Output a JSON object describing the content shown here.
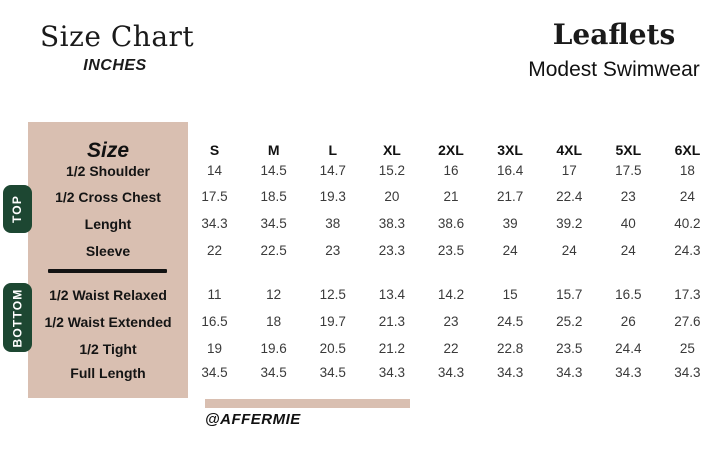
{
  "header": {
    "left_title": "Size Chart",
    "left_subtitle": "INCHES",
    "brand_title": "Leaflets",
    "brand_subtitle": "Modest Swimwear"
  },
  "table": {
    "corner_label": "Size",
    "size_columns": [
      "S",
      "M",
      "L",
      "XL",
      "2XL",
      "3XL",
      "4XL",
      "5XL",
      "6XL"
    ],
    "sections": [
      {
        "name": "TOP",
        "rows": [
          {
            "label": "1/2 Shoulder",
            "values": [
              "14",
              "14.5",
              "14.7",
              "15.2",
              "16",
              "16.4",
              "17",
              "17.5",
              "18"
            ]
          },
          {
            "label": "1/2 Cross Chest",
            "values": [
              "17.5",
              "18.5",
              "19.3",
              "20",
              "21",
              "21.7",
              "22.4",
              "23",
              "24"
            ]
          },
          {
            "label": "Lenght",
            "values": [
              "34.3",
              "34.5",
              "38",
              "38.3",
              "38.6",
              "39",
              "39.2",
              "40",
              "40.2"
            ]
          },
          {
            "label": "Sleeve",
            "values": [
              "22",
              "22.5",
              "23",
              "23.3",
              "23.5",
              "24",
              "24",
              "24",
              "24.3"
            ]
          }
        ]
      },
      {
        "name": "BOTTOM",
        "rows": [
          {
            "label": "1/2 Waist Relaxed",
            "values": [
              "11",
              "12",
              "12.5",
              "13.4",
              "14.2",
              "15",
              "15.7",
              "16.5",
              "17.3"
            ]
          },
          {
            "label": "1/2 Waist Extended",
            "values": [
              "16.5",
              "18",
              "19.7",
              "21.3",
              "23",
              "24.5",
              "25.2",
              "26",
              "27.6"
            ]
          },
          {
            "label": "1/2 Tight",
            "values": [
              "19",
              "19.6",
              "20.5",
              "21.2",
              "22",
              "22.8",
              "23.5",
              "24.4",
              "25"
            ]
          },
          {
            "label": "Full Length",
            "values": [
              "34.5",
              "34.5",
              "34.5",
              "34.3",
              "34.3",
              "34.3",
              "34.3",
              "34.3",
              "34.3"
            ]
          }
        ]
      }
    ]
  },
  "footer": {
    "handle": "@AFFERMIE"
  },
  "colors": {
    "beige": "#d9bfb1",
    "green": "#1d4732",
    "text": "#1a1a1a"
  }
}
